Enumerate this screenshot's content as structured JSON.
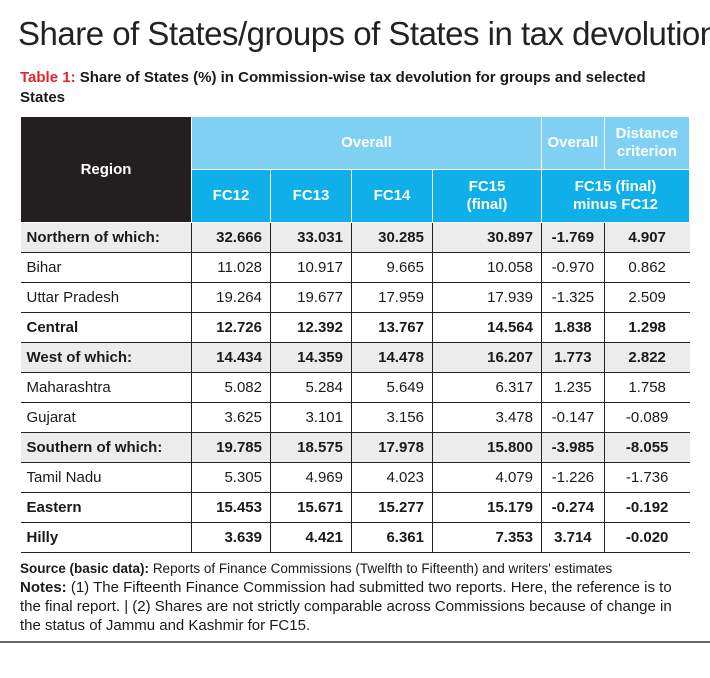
{
  "title": "Share of States/groups of States in tax devolution",
  "subtitle": {
    "label": "Table 1:",
    "text": "Share of States (%) in Commission-wise tax devolution for groups and selected States"
  },
  "table": {
    "header": {
      "region": "Region",
      "overall_group": "Overall",
      "overall2": "Overall",
      "distance": "Distance criterion",
      "fc12": "FC12",
      "fc13": "FC13",
      "fc14": "FC14",
      "fc15": "FC15 (final)",
      "diff": "FC15 (final) minus FC12"
    },
    "rows": [
      {
        "name": "Northern of which:",
        "v": [
          "32.666",
          "33.031",
          "30.285",
          "30.897",
          "-1.769",
          "4.907"
        ],
        "group": true,
        "bold": true
      },
      {
        "name": "Bihar",
        "v": [
          "11.028",
          "10.917",
          "9.665",
          "10.058",
          "-0.970",
          "0.862"
        ]
      },
      {
        "name": "Uttar Pradesh",
        "v": [
          "19.264",
          "19.677",
          "17.959",
          "17.939",
          "-1.325",
          "2.509"
        ]
      },
      {
        "name": "Central",
        "v": [
          "12.726",
          "12.392",
          "13.767",
          "14.564",
          "1.838",
          "1.298"
        ],
        "bold": true
      },
      {
        "name": "West of which:",
        "v": [
          "14.434",
          "14.359",
          "14.478",
          "16.207",
          "1.773",
          "2.822"
        ],
        "group": true,
        "bold": true
      },
      {
        "name": "Maharashtra",
        "v": [
          "5.082",
          "5.284",
          "5.649",
          "6.317",
          "1.235",
          "1.758"
        ]
      },
      {
        "name": "Gujarat",
        "v": [
          "3.625",
          "3.101",
          "3.156",
          "3.478",
          "-0.147",
          "-0.089"
        ]
      },
      {
        "name": "Southern of which:",
        "v": [
          "19.785",
          "18.575",
          "17.978",
          "15.800",
          "-3.985",
          "-8.055"
        ],
        "group": true,
        "bold": true
      },
      {
        "name": "Tamil Nadu",
        "v": [
          "5.305",
          "4.969",
          "4.023",
          "4.079",
          "-1.226",
          "-1.736"
        ]
      },
      {
        "name": "Eastern",
        "v": [
          "15.453",
          "15.671",
          "15.277",
          "15.179",
          "-0.274",
          "-0.192"
        ],
        "bold": true
      },
      {
        "name": "Hilly",
        "v": [
          "3.639",
          "4.421",
          "6.361",
          "7.353",
          "3.714",
          "-0.020"
        ],
        "bold": true
      }
    ]
  },
  "notes": {
    "source_label": "Source (basic data):",
    "source_text": "Reports of Finance Commissions (Twelfth to Fifteenth) and writers' estimates",
    "notes_label": "Notes:",
    "notes_text": "(1) The Fifteenth Finance Commission had submitted two reports. Here, the reference is to the final report. | (2) Shares are not strictly comparable across Commissions because of change in the status of Jammu and Kashmir for FC15."
  },
  "colors": {
    "header_dark": "#231f20",
    "header_light_blue": "#7fd1f3",
    "header_blue": "#0fb0ea",
    "label_red": "#e0262b",
    "group_row": "#ececec"
  }
}
